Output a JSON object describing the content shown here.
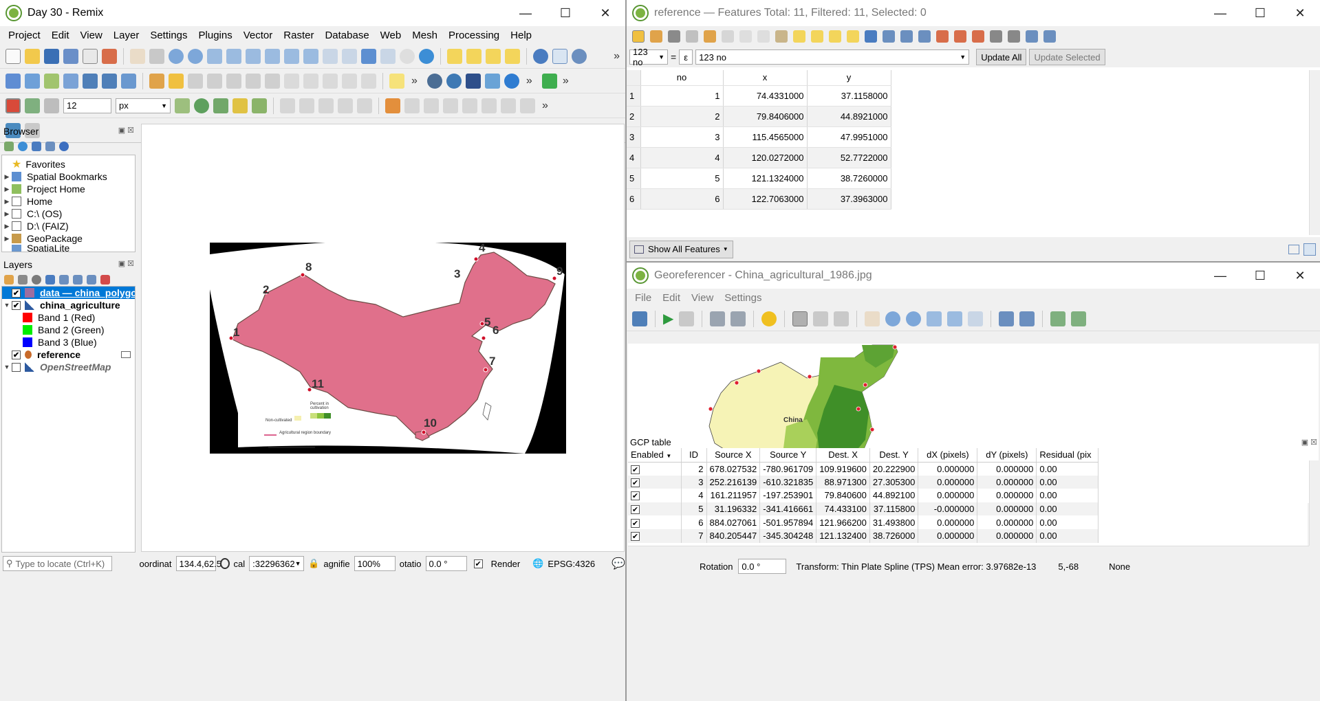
{
  "main": {
    "title": "Day 30 - Remix",
    "menu": [
      "Project",
      "Edit",
      "View",
      "Layer",
      "Settings",
      "Plugins",
      "Vector",
      "Raster",
      "Database",
      "Web",
      "Mesh",
      "Processing",
      "Help"
    ],
    "snap_tolerance": "12",
    "snap_unit": "px",
    "browser": {
      "title": "Browser",
      "items": [
        "Favorites",
        "Spatial Bookmarks",
        "Project Home",
        "Home",
        "C:\\ (OS)",
        "D:\\ (FAIZ)",
        "GeoPackage",
        "SpatiaLite"
      ]
    },
    "layers": {
      "title": "Layers",
      "items": [
        {
          "label": "data — china_polygon",
          "color": "#9c6ea0"
        },
        {
          "label": "china_agriculture"
        },
        {
          "label": "Band 1 (Red)",
          "color": "#ff0000"
        },
        {
          "label": "Band 2 (Green)",
          "color": "#00ee00"
        },
        {
          "label": "Band 3 (Blue)",
          "color": "#0000ff"
        },
        {
          "label": "reference"
        },
        {
          "label": "OpenStreetMap"
        }
      ]
    },
    "map_labels": [
      "1",
      "2",
      "3",
      "4",
      "5",
      "6",
      "7",
      "8",
      "9",
      "10",
      "11"
    ],
    "map_legend": {
      "legend_title": "Percent in cultivation",
      "non_cultivated": "Non-cultivated",
      "boundary": "Agricultural region boundary"
    },
    "status": {
      "locate_placeholder": "Type to locate (Ctrl+K)",
      "coord_label": "oordinat",
      "coord_value": "134.4,62.5",
      "scale_label": "cal",
      "scale_value": ":32296362",
      "magnifier_label": "agnifie",
      "magnifier_value": "100%",
      "rotation_label": "otatio",
      "rotation_value": "0.0 °",
      "render_label": "Render",
      "crs": "EPSG:4326"
    }
  },
  "attr": {
    "title": "reference — Features Total: 11, Filtered: 11, Selected: 0",
    "field_select": "123 no",
    "expression": "123 no",
    "update_all": "Update All",
    "update_selected": "Update Selected",
    "columns": [
      "no",
      "x",
      "y"
    ],
    "rows": [
      [
        "1",
        "1",
        "74.4331000",
        "37.1158000"
      ],
      [
        "2",
        "2",
        "79.8406000",
        "44.8921000"
      ],
      [
        "3",
        "3",
        "115.4565000",
        "47.9951000"
      ],
      [
        "4",
        "4",
        "120.0272000",
        "52.7722000"
      ],
      [
        "5",
        "5",
        "121.1324000",
        "38.7260000"
      ],
      [
        "6",
        "6",
        "122.7063000",
        "37.3963000"
      ]
    ],
    "show_all": "Show All Features"
  },
  "geo": {
    "title": "Georeferencer - China_agricultural_1986.jpg",
    "menu": [
      "File",
      "Edit",
      "View",
      "Settings"
    ],
    "map_label": "China",
    "gcp_title": "GCP table",
    "gcp_columns": [
      "Enabled",
      "ID",
      "Source X",
      "Source Y",
      "Dest. X",
      "Dest. Y",
      "dX (pixels)",
      "dY (pixels)",
      "Residual (pix"
    ],
    "gcp_rows": [
      [
        "2",
        "678.027532",
        "-780.961709",
        "109.919600",
        "20.222900",
        "0.000000",
        "0.000000",
        "0.00"
      ],
      [
        "3",
        "252.216139",
        "-610.321835",
        "88.971300",
        "27.305300",
        "0.000000",
        "0.000000",
        "0.00"
      ],
      [
        "4",
        "161.211957",
        "-197.253901",
        "79.840600",
        "44.892100",
        "0.000000",
        "0.000000",
        "0.00"
      ],
      [
        "5",
        "31.196332",
        "-341.416661",
        "74.433100",
        "37.115800",
        "-0.000000",
        "0.000000",
        "0.00"
      ],
      [
        "6",
        "884.027061",
        "-501.957894",
        "121.966200",
        "31.493800",
        "0.000000",
        "0.000000",
        "0.00"
      ],
      [
        "7",
        "840.205447",
        "-345.304248",
        "121.132400",
        "38.726000",
        "0.000000",
        "0.000000",
        "0.00"
      ]
    ],
    "rotation_label": "Rotation",
    "rotation_value": "0.0 °",
    "transform_status": "Transform: Thin Plate Spline (TPS) Mean error: 3.97682e-13",
    "coords": "5,-68",
    "crs": "None"
  }
}
